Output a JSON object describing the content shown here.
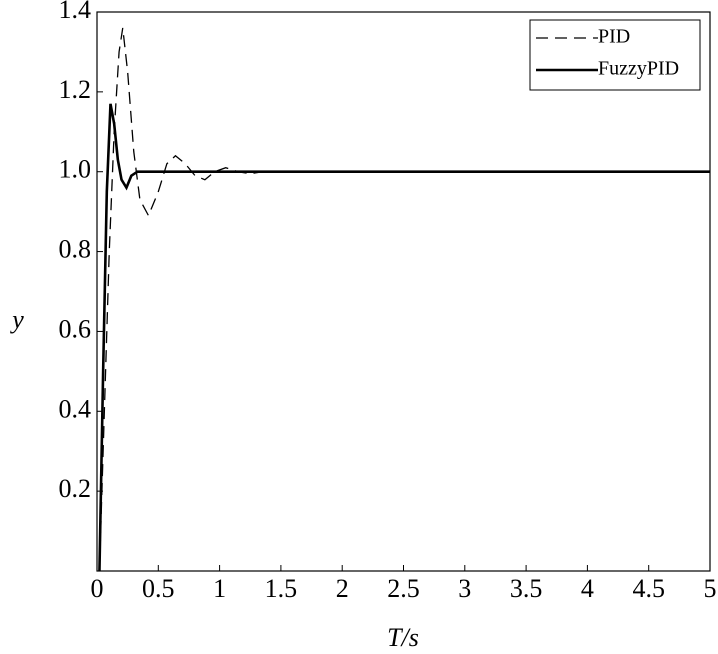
{
  "chart_data": {
    "type": "line",
    "xlabel": "T/s",
    "ylabel": "y",
    "xlim": [
      0,
      5
    ],
    "ylim": [
      0,
      1.4
    ],
    "xticks": [
      0,
      0.5,
      1,
      1.5,
      2,
      2.5,
      3,
      3.5,
      4,
      4.5,
      5
    ],
    "yticks": [
      0.2,
      0.4,
      0.6,
      0.8,
      {
        "value": 1,
        "label": "1.0"
      },
      1.2,
      1.4
    ],
    "legend": "upper right",
    "series": [
      {
        "name": "PID",
        "color": "#000000",
        "dash": true,
        "x": [
          0.02,
          0.06,
          0.1,
          0.14,
          0.18,
          0.21,
          0.25,
          0.3,
          0.35,
          0.42,
          0.5,
          0.57,
          0.64,
          0.72,
          0.8,
          0.88,
          0.96,
          1.05,
          1.15,
          1.25,
          1.35,
          2,
          3,
          4,
          5
        ],
        "values": [
          0,
          0.4,
          0.8,
          1.1,
          1.3,
          1.36,
          1.25,
          1.05,
          0.93,
          0.89,
          0.95,
          1.02,
          1.04,
          1.02,
          0.99,
          0.98,
          1.0,
          1.01,
          1.0,
          0.995,
          1.0,
          1.0,
          1.0,
          1.0,
          1.0
        ]
      },
      {
        "name": "FuzzyPID",
        "color": "#000000",
        "dash": false,
        "x": [
          0.02,
          0.05,
          0.08,
          0.11,
          0.14,
          0.17,
          0.2,
          0.24,
          0.28,
          0.33,
          5
        ],
        "values": [
          0,
          0.5,
          0.95,
          1.17,
          1.12,
          1.03,
          0.98,
          0.96,
          0.99,
          1.0,
          1.0
        ]
      }
    ]
  }
}
